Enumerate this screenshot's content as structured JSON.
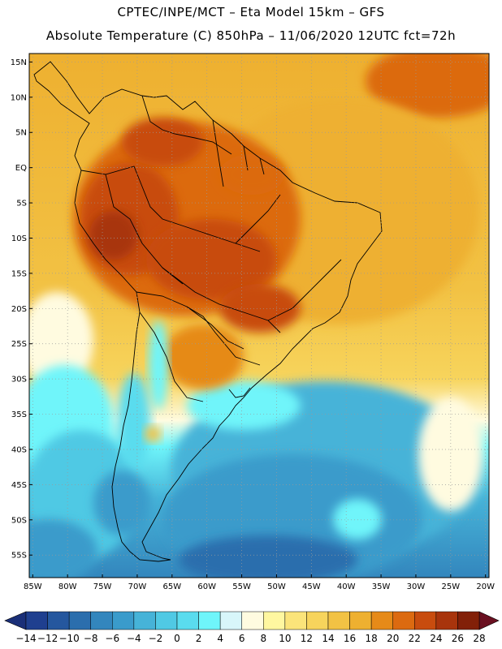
{
  "header": {
    "line1": "CPTEC/INPE/MCT –  Eta Model 15km – GFS",
    "line2": "Absolute Temperature (C) 850hPa – 11/06/2020 12UTC fct=72h"
  },
  "map": {
    "region": "South America",
    "lat_ticks": [
      "15N",
      "10N",
      "5N",
      "EQ",
      "5S",
      "10S",
      "15S",
      "20S",
      "25S",
      "30S",
      "35S",
      "40S",
      "45S",
      "50S",
      "55S"
    ],
    "lon_ticks": [
      "85W",
      "80W",
      "75W",
      "70W",
      "65W",
      "60W",
      "55W",
      "50W",
      "45W",
      "40W",
      "35W",
      "30W",
      "25W",
      "20W"
    ],
    "gridlines": "dotted"
  },
  "colorbar": {
    "labels": [
      "-14",
      "-12",
      "-10",
      "-8",
      "-6",
      "-4",
      "-2",
      "0",
      "2",
      "4",
      "6",
      "8",
      "10",
      "12",
      "14",
      "16",
      "18",
      "20",
      "22",
      "24",
      "26",
      "28"
    ],
    "colors": [
      "#1f3f8f",
      "#25579e",
      "#2b6ead",
      "#3386bd",
      "#3a9bcb",
      "#46b3d8",
      "#50c9e4",
      "#5adcee",
      "#6ff5fa",
      "#d8f6fa",
      "#fffbe0",
      "#fff7a0",
      "#fbe47a",
      "#f7d45c",
      "#f2c244",
      "#eeb030",
      "#e68a18",
      "#dc6a10",
      "#c84c0e",
      "#a8340c",
      "#822008"
    ],
    "under_color": "#1a2f78",
    "over_color": "#6a1020"
  }
}
